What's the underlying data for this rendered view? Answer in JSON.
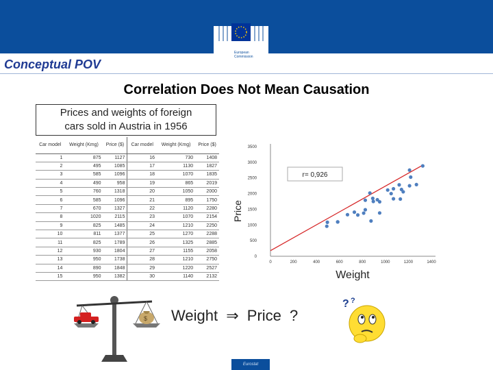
{
  "header": {
    "logo_text_1": "European",
    "logo_text_2": "Commission",
    "section_label": "Conceptual POV"
  },
  "slide": {
    "title": "Correlation Does Not Mean Causation",
    "table_caption_line1": "Prices and weights of foreign",
    "table_caption_line2": "cars sold in Austria in 1956",
    "bottom_text": [
      "Weight",
      "⇒",
      "Price",
      "?"
    ],
    "footer": "Eurostat"
  },
  "table": {
    "headers": [
      "Car model",
      "Weight (Kmg)",
      "Price ($)",
      "Car model",
      "Weight (Kmg)",
      "Price ($)"
    ],
    "rows": [
      [
        "1",
        "875",
        "1127",
        "16",
        "730",
        "1408"
      ],
      [
        "2",
        "495",
        "1085",
        "17",
        "1130",
        "1827"
      ],
      [
        "3",
        "585",
        "1096",
        "18",
        "1070",
        "1835"
      ],
      [
        "4",
        "490",
        "958",
        "19",
        "865",
        "2019"
      ],
      [
        "5",
        "760",
        "1318",
        "20",
        "1050",
        "2000"
      ],
      [
        "6",
        "585",
        "1096",
        "21",
        "895",
        "1750"
      ],
      [
        "7",
        "670",
        "1327",
        "22",
        "1120",
        "2280"
      ],
      [
        "8",
        "1020",
        "2115",
        "23",
        "1070",
        "2154"
      ],
      [
        "9",
        "825",
        "1485",
        "24",
        "1210",
        "2250"
      ],
      [
        "10",
        "811",
        "1377",
        "25",
        "1270",
        "2288"
      ],
      [
        "11",
        "825",
        "1789",
        "26",
        "1325",
        "2885"
      ],
      [
        "12",
        "930",
        "1804",
        "27",
        "1155",
        "2058"
      ],
      [
        "13",
        "950",
        "1738",
        "28",
        "1210",
        "2750"
      ],
      [
        "14",
        "890",
        "1848",
        "29",
        "1220",
        "2527"
      ],
      [
        "15",
        "950",
        "1382",
        "30",
        "1140",
        "2132"
      ]
    ]
  },
  "chart_data": {
    "type": "scatter",
    "xlabel": "Weight",
    "ylabel": "Price",
    "annotation": "r= 0,926",
    "xlim": [
      0,
      1400
    ],
    "ylim": [
      0,
      3500
    ],
    "x_ticks": [
      0,
      200,
      400,
      600,
      800,
      1000,
      1200,
      1400
    ],
    "y_ticks": [
      0,
      500,
      1000,
      1500,
      2000,
      2500,
      3000,
      3500
    ],
    "x_tick_labels": [
      "0",
      "200",
      "400",
      "600",
      "800",
      "1000",
      "1200",
      "1400"
    ],
    "y_tick_labels": [
      "0",
      "500",
      "1000",
      "1500",
      "2000",
      "2500",
      "3000",
      "3500"
    ],
    "trendline": {
      "x": [
        0,
        1330
      ],
      "y": [
        180,
        2920
      ]
    },
    "point_color": "#4f7fbf",
    "line_color": "#d62728",
    "points": [
      [
        875,
        1127
      ],
      [
        495,
        1085
      ],
      [
        585,
        1096
      ],
      [
        490,
        958
      ],
      [
        760,
        1318
      ],
      [
        585,
        1096
      ],
      [
        670,
        1327
      ],
      [
        1020,
        2115
      ],
      [
        825,
        1485
      ],
      [
        811,
        1377
      ],
      [
        825,
        1789
      ],
      [
        930,
        1804
      ],
      [
        950,
        1738
      ],
      [
        890,
        1848
      ],
      [
        950,
        1382
      ],
      [
        730,
        1408
      ],
      [
        1130,
        1827
      ],
      [
        1070,
        1835
      ],
      [
        865,
        2019
      ],
      [
        1050,
        2000
      ],
      [
        895,
        1750
      ],
      [
        1120,
        2280
      ],
      [
        1070,
        2154
      ],
      [
        1210,
        2250
      ],
      [
        1270,
        2288
      ],
      [
        1325,
        2885
      ],
      [
        1155,
        2058
      ],
      [
        1210,
        2750
      ],
      [
        1220,
        2527
      ],
      [
        1140,
        2132
      ]
    ]
  },
  "colors": {
    "brand_blue": "#0b4e9c",
    "title_blue": "#1f3a93"
  }
}
